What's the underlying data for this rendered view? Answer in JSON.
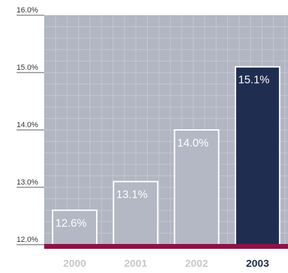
{
  "chart_data": {
    "type": "bar",
    "categories": [
      "2000",
      "2001",
      "2002",
      "2003"
    ],
    "values": [
      12.6,
      13.1,
      14.0,
      15.1
    ],
    "value_labels": [
      "12.6%",
      "13.1%",
      "14.0%",
      "15.1%"
    ],
    "ylim": [
      12.0,
      16.0
    ],
    "yticks": [
      12.0,
      13.0,
      14.0,
      15.0,
      16.0
    ],
    "ytick_labels": [
      "12.0%",
      "13.0%",
      "14.0%",
      "15.0%",
      "16.0%"
    ],
    "grid": true,
    "title": "",
    "xlabel": "",
    "ylabel": "",
    "highlight_index": 3
  },
  "colors": {
    "plot_background": "#b2b5c2",
    "grid": "#c5c8d2",
    "bar": "#b4b7c4",
    "bar_outline": "#ffffff",
    "highlight_bar": "#1f2d50",
    "baseline": "#8c1346",
    "category_label": "#c8c8c8",
    "highlight_label": "#1f2d50"
  }
}
